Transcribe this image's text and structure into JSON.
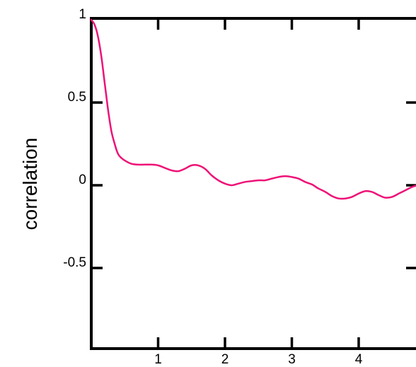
{
  "chart_data": {
    "type": "line",
    "xlabel": "",
    "ylabel": "correlation",
    "xlim": [
      0,
      4.88
    ],
    "ylim": [
      -1.0,
      1.0
    ],
    "x_ticks": [
      {
        "value": 1,
        "label": "1"
      },
      {
        "value": 2,
        "label": "2"
      },
      {
        "value": 3,
        "label": "3"
      },
      {
        "value": 4,
        "label": "4"
      }
    ],
    "y_ticks": [
      {
        "value": 1,
        "label": "1"
      },
      {
        "value": 0.5,
        "label": "0.5"
      },
      {
        "value": 0,
        "label": "0"
      },
      {
        "value": -0.5,
        "label": "-0.5"
      }
    ],
    "grid": false,
    "series": [
      {
        "color": "#ee1177",
        "x": [
          0.0,
          0.05,
          0.1,
          0.15,
          0.2,
          0.25,
          0.3,
          0.35,
          0.4,
          0.45,
          0.5,
          0.6,
          0.7,
          0.8,
          0.9,
          1.0,
          1.1,
          1.2,
          1.3,
          1.4,
          1.5,
          1.6,
          1.7,
          1.8,
          1.9,
          2.0,
          2.1,
          2.2,
          2.3,
          2.4,
          2.5,
          2.6,
          2.7,
          2.8,
          2.9,
          3.0,
          3.1,
          3.2,
          3.3,
          3.4,
          3.5,
          3.6,
          3.7,
          3.8,
          3.9,
          4.0,
          4.1,
          4.2,
          4.3,
          4.4,
          4.5,
          4.6,
          4.7,
          4.8,
          4.88
        ],
        "y": [
          1.0,
          0.97,
          0.9,
          0.78,
          0.62,
          0.46,
          0.33,
          0.25,
          0.19,
          0.165,
          0.15,
          0.13,
          0.125,
          0.125,
          0.125,
          0.12,
          0.105,
          0.09,
          0.085,
          0.1,
          0.12,
          0.12,
          0.1,
          0.06,
          0.03,
          0.01,
          0.0,
          0.01,
          0.02,
          0.025,
          0.03,
          0.03,
          0.04,
          0.05,
          0.055,
          0.05,
          0.04,
          0.02,
          0.005,
          -0.02,
          -0.04,
          -0.065,
          -0.08,
          -0.08,
          -0.07,
          -0.05,
          -0.035,
          -0.04,
          -0.06,
          -0.075,
          -0.07,
          -0.05,
          -0.03,
          -0.01,
          0.0
        ]
      }
    ]
  }
}
